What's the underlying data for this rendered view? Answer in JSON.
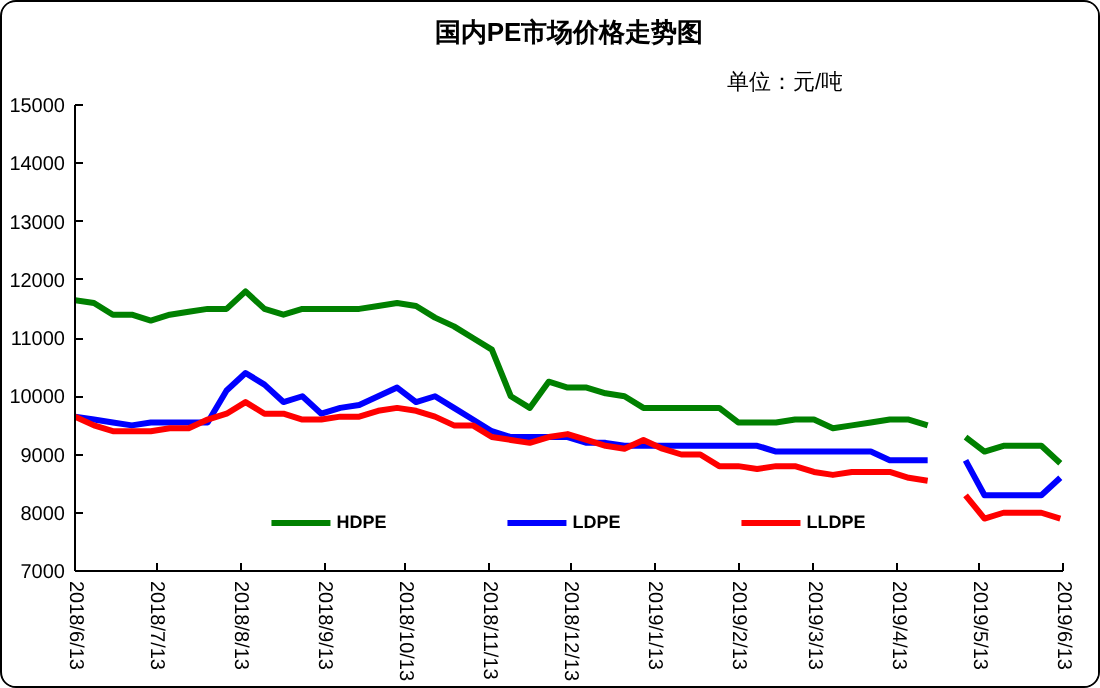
{
  "chart_data": {
    "type": "line",
    "title": "国内PE市场价格走势图",
    "annotations": [
      "单位：元/吨"
    ],
    "x": [
      "2018-06-13",
      "2018-06-20",
      "2018-06-27",
      "2018-07-04",
      "2018-07-11",
      "2018-07-18",
      "2018-07-25",
      "2018-08-01",
      "2018-08-08",
      "2018-08-15",
      "2018-08-22",
      "2018-08-29",
      "2018-09-05",
      "2018-09-12",
      "2018-09-19",
      "2018-09-26",
      "2018-10-03",
      "2018-10-10",
      "2018-10-17",
      "2018-10-24",
      "2018-10-31",
      "2018-11-07",
      "2018-11-14",
      "2018-11-21",
      "2018-11-28",
      "2018-12-05",
      "2018-12-12",
      "2018-12-19",
      "2018-12-26",
      "2019-01-02",
      "2019-01-09",
      "2019-01-16",
      "2019-01-23",
      "2019-01-30",
      "2019-02-06",
      "2019-02-13",
      "2019-02-20",
      "2019-02-27",
      "2019-03-06",
      "2019-03-13",
      "2019-03-20",
      "2019-03-27",
      "2019-04-03",
      "2019-04-10",
      "2019-04-17",
      "2019-04-24",
      "2019-05-01",
      "2019-05-08",
      "2019-05-15",
      "2019-05-22",
      "2019-05-29",
      "2019-06-05",
      "2019-06-12"
    ],
    "series": [
      {
        "name": "HDPE",
        "color": "#008000",
        "values": [
          11650,
          11600,
          11400,
          11400,
          11300,
          11400,
          11450,
          11500,
          11500,
          11800,
          11500,
          11400,
          11500,
          11500,
          11500,
          11500,
          11550,
          11600,
          11550,
          11350,
          11200,
          11000,
          10800,
          10000,
          9800,
          10250,
          10150,
          10150,
          10050,
          10000,
          9800,
          9800,
          9800,
          9800,
          9800,
          9550,
          9550,
          9550,
          9600,
          9600,
          9450,
          9500,
          9550,
          9600,
          9600,
          9500,
          null,
          9300,
          9050,
          9150,
          9150,
          9150,
          8850
        ]
      },
      {
        "name": "LDPE",
        "color": "#0000ff",
        "values": [
          9650,
          9600,
          9550,
          9500,
          9550,
          9550,
          9550,
          9550,
          10100,
          10400,
          10200,
          9900,
          10000,
          9700,
          9800,
          9850,
          10000,
          10150,
          9900,
          10000,
          9800,
          9600,
          9400,
          9300,
          9300,
          9300,
          9300,
          9200,
          9200,
          9150,
          9150,
          9150,
          9150,
          9150,
          9150,
          9150,
          9150,
          9050,
          9050,
          9050,
          9050,
          9050,
          9050,
          8900,
          8900,
          8900,
          null,
          8900,
          8300,
          8300,
          8300,
          8300,
          8600
        ]
      },
      {
        "name": "LLDPE",
        "color": "#ff0000",
        "values": [
          9650,
          9500,
          9400,
          9400,
          9400,
          9450,
          9450,
          9600,
          9700,
          9900,
          9700,
          9700,
          9600,
          9600,
          9650,
          9650,
          9750,
          9800,
          9750,
          9650,
          9500,
          9500,
          9300,
          9250,
          9200,
          9300,
          9350,
          9250,
          9150,
          9100,
          9250,
          9100,
          9000,
          9000,
          8800,
          8800,
          8750,
          8800,
          8800,
          8700,
          8650,
          8700,
          8700,
          8700,
          8600,
          8550,
          null,
          8300,
          7900,
          8000,
          8000,
          8000,
          7900
        ]
      }
    ],
    "xlim": [
      "2018-06-13",
      "2019-06-13"
    ],
    "xticks": [
      {
        "value": "2018-06-13",
        "label": "2018/6/13"
      },
      {
        "value": "2018-07-13",
        "label": "2018/7/13"
      },
      {
        "value": "2018-08-13",
        "label": "2018/8/13"
      },
      {
        "value": "2018-09-13",
        "label": "2018/9/13"
      },
      {
        "value": "2018-10-13",
        "label": "2018/10/13"
      },
      {
        "value": "2018-11-13",
        "label": "2018/11/13"
      },
      {
        "value": "2018-12-13",
        "label": "2018/12/13"
      },
      {
        "value": "2019-01-13",
        "label": "2019/1/13"
      },
      {
        "value": "2019-02-13",
        "label": "2019/2/13"
      },
      {
        "value": "2019-03-13",
        "label": "2019/3/13"
      },
      {
        "value": "2019-04-13",
        "label": "2019/4/13"
      },
      {
        "value": "2019-05-13",
        "label": "2019/5/13"
      },
      {
        "value": "2019-06-13",
        "label": "2019/6/13"
      }
    ],
    "ylim": [
      7000,
      15000
    ],
    "yticks": [
      7000,
      8000,
      9000,
      10000,
      11000,
      12000,
      13000,
      14000,
      15000
    ],
    "grid": false,
    "legend": "bottom",
    "marker": "none",
    "line_style": "solid"
  }
}
